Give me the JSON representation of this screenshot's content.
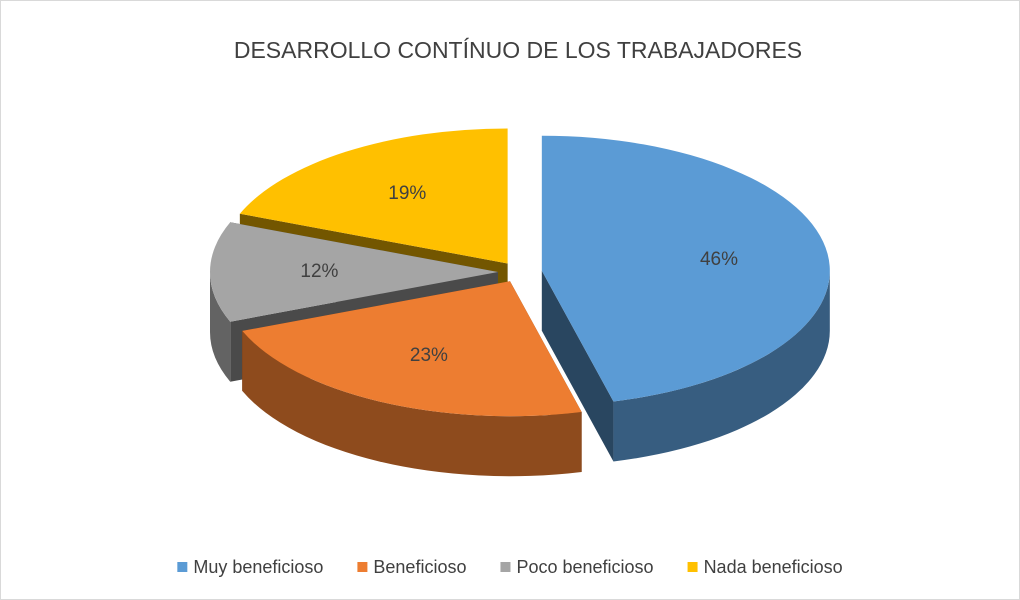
{
  "chart_data": {
    "type": "pie",
    "title": "DESARROLLO CONTÍNUO DE LOS TRABAJADORES",
    "categories": [
      "Muy beneficioso",
      "Beneficioso",
      "Poco beneficioso",
      "Nada beneficioso"
    ],
    "values": [
      46,
      23,
      12,
      19
    ],
    "value_labels": [
      "46%",
      "23%",
      "12%",
      "19%"
    ],
    "colors": [
      "#5b9bd5",
      "#ed7d31",
      "#a5a5a5",
      "#ffc000"
    ],
    "legend": "bottom"
  }
}
